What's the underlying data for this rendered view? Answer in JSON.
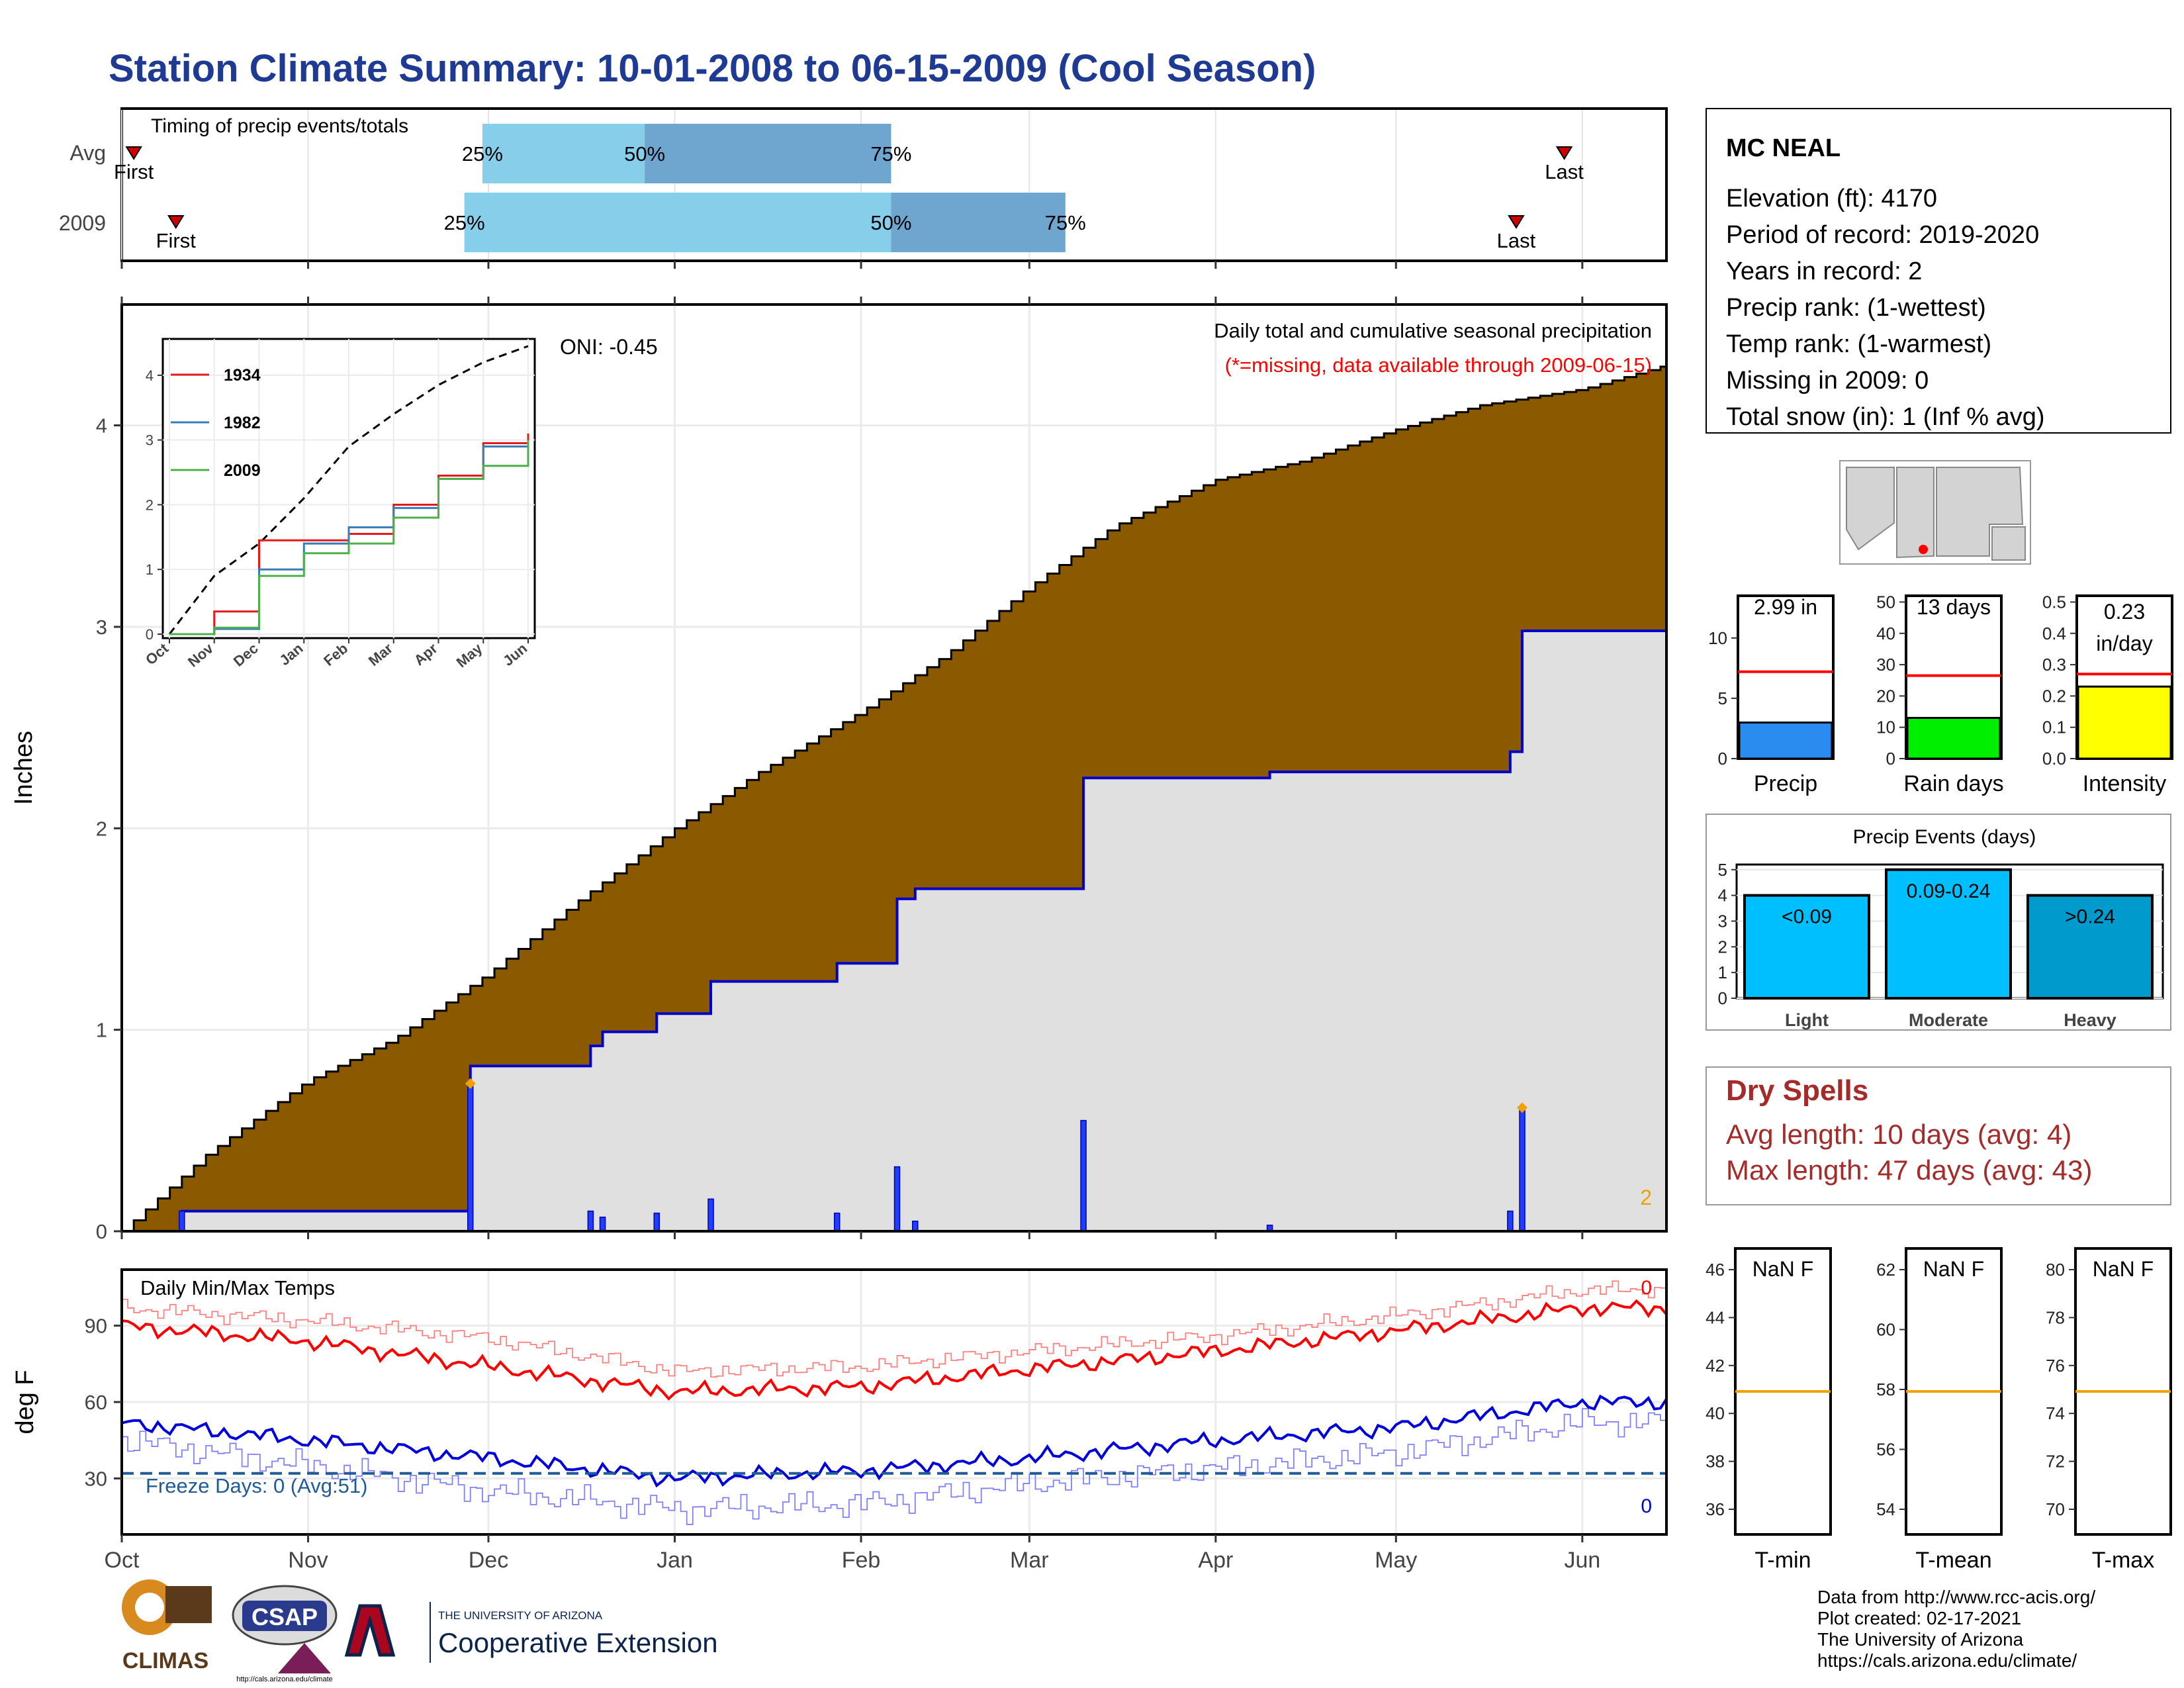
{
  "title": "Station Climate Summary: 10-01-2008 to 06-15-2009 (Cool Season)",
  "colors": {
    "title": "#1f3a93",
    "cumulative_fill": "#8b5a00",
    "avg_fill": "#e0e0e0",
    "avg_line": "#0000cc",
    "daily_bar": "#1f3fff",
    "max_temp": "#ff0000",
    "min_temp": "#0000dd",
    "freeze_line": "#1f5a99",
    "dry_spells": "#a52a2a",
    "missing_note": "#ff0000",
    "q_light": "#87ceeb",
    "q_dark": "#6ea6d0"
  },
  "timing": {
    "title": "Timing of precip events/totals",
    "rows": [
      {
        "label": "Avg",
        "first_label": "First",
        "last_label": "Last",
        "first_day": 2,
        "last_day": 240,
        "q25": 60,
        "q50": 87,
        "q75": 128,
        "p25": "25%",
        "p50": "50%",
        "p75": "75%"
      },
      {
        "label": "2009",
        "first_label": "First",
        "last_label": "Last",
        "first_day": 9,
        "last_day": 232,
        "q25": 57,
        "q50": 128,
        "q75": 157,
        "p25": "25%",
        "p50": "50%",
        "p75": "75%"
      }
    ]
  },
  "precip": {
    "ylabel": "Inches",
    "oni": "ONI: -0.45",
    "note1": "Daily total and cumulative seasonal precipitation",
    "note2": "(*=missing, data available through 2009-06-15)",
    "count_label": "2",
    "x_ticks": [
      "Oct",
      "Nov",
      "Dec",
      "Jan",
      "Feb",
      "Mar",
      "Apr",
      "May",
      "Jun"
    ],
    "y_ticks": [
      "0",
      "1",
      "2",
      "3",
      "4"
    ],
    "ylim": [
      0,
      4.6
    ]
  },
  "inset": {
    "x_ticks": [
      "Oct",
      "Nov",
      "Dec",
      "Jan",
      "Feb",
      "Mar",
      "Apr",
      "May",
      "Jun"
    ],
    "y_ticks": [
      "0",
      "1",
      "2",
      "3",
      "4"
    ],
    "legend": [
      {
        "name": "1934",
        "color": "#e41a1c"
      },
      {
        "name": "1982",
        "color": "#377eb8"
      },
      {
        "name": "2009",
        "color": "#4daf4a"
      }
    ]
  },
  "temps": {
    "title": "Daily Min/Max Temps",
    "ylabel": "deg F",
    "freeze": "Freeze Days: 0 (Avg:51)",
    "max_count": "0",
    "min_count": "0",
    "y_ticks": [
      "30",
      "60",
      "90"
    ],
    "x_ticks": [
      "Oct",
      "Nov",
      "Dec",
      "Jan",
      "Feb",
      "Mar",
      "Apr",
      "May",
      "Jun"
    ]
  },
  "station": {
    "name": "MC NEAL",
    "lines": [
      "Elevation (ft): 4170",
      "Period of record: 2019-2020",
      "Years in record: 2",
      "Precip rank:  (1-wettest)",
      "Temp rank:  (1-warmest)",
      "Missing in 2009: 0",
      "Total snow (in): 1 (Inf % avg)"
    ]
  },
  "mini_bars": [
    {
      "label": "Precip",
      "value_label": "2.99 in",
      "value": 2.99,
      "avg": 7.2,
      "ymax": 13.5,
      "ticks": [
        "0",
        "5",
        "10"
      ],
      "color": "#2b8cf0"
    },
    {
      "label": "Rain days",
      "value_label": "13 days",
      "value": 13,
      "avg": 26.5,
      "ymax": 52,
      "ticks": [
        "0",
        "10",
        "20",
        "30",
        "40",
        "50"
      ],
      "color": "#00ee00"
    },
    {
      "label": "Intensity",
      "value_label": "0.23 in/day",
      "value": 0.23,
      "avg": 0.27,
      "ymax": 0.52,
      "ticks": [
        "0.0",
        "0.1",
        "0.2",
        "0.3",
        "0.4",
        "0.5"
      ],
      "color": "#ffff00"
    }
  ],
  "events": {
    "title": "Precip Events (days)",
    "bars": [
      {
        "label": "Light",
        "range": "<0.09",
        "value": 4,
        "color": "#00bfff"
      },
      {
        "label": "Moderate",
        "range": "0.09-0.24",
        "value": 5,
        "color": "#00bfff"
      },
      {
        "label": "Heavy",
        "range": ">0.24",
        "value": 4,
        "color": "#009acd"
      }
    ],
    "y_ticks": [
      "0",
      "1",
      "2",
      "3",
      "4",
      "5"
    ]
  },
  "dry_spells": {
    "title": "Dry Spells",
    "avg": "Avg length: 10 days (avg: 4)",
    "max": "Max length: 47 days (avg: 43)"
  },
  "temp_boxes": [
    {
      "label": "T-min",
      "value": "NaN F",
      "ticks": [
        "36",
        "38",
        "40",
        "42",
        "44",
        "46"
      ],
      "avg_frac": 0.5
    },
    {
      "label": "T-mean",
      "value": "NaN F",
      "ticks": [
        "54",
        "56",
        "58",
        "60",
        "62"
      ],
      "avg_frac": 0.5
    },
    {
      "label": "T-max",
      "value": "NaN F",
      "ticks": [
        "70",
        "72",
        "74",
        "76",
        "78",
        "80"
      ],
      "avg_frac": 0.5
    }
  ],
  "footer": [
    "Data from http://www.rcc-acis.org/",
    "Plot created: 02-17-2021",
    "The University of Arizona",
    "https://cals.arizona.edu/climate/"
  ],
  "logos": {
    "climas": "CLIMAS",
    "csap": "CSAP",
    "csap_url": "http://cals.arizona.edu/climate",
    "ua_line1": "THE UNIVERSITY OF ARIZONA",
    "ua_line2": "Cooperative Extension"
  },
  "chart_data": [
    {
      "type": "area",
      "title": "Daily total and cumulative seasonal precipitation",
      "ylabel": "Inches",
      "ylim": [
        0,
        4.6
      ],
      "x_range": [
        "2008-10-01",
        "2009-06-15"
      ],
      "series": [
        {
          "name": "",
          "kind": "average cumulative",
          "x": [
            "2008-10-01",
            "2008-10-15",
            "2008-11-01",
            "2008-11-15",
            "2008-12-01",
            "2008-12-15",
            "2009-01-01",
            "2009-01-15",
            "2009-02-01",
            "2009-02-15",
            "2009-03-01",
            "2009-03-15",
            "2009-04-01",
            "2009-04-15",
            "2009-05-01",
            "2009-05-15",
            "2009-06-01",
            "2009-06-15"
          ],
          "values": [
            0.0,
            0.38,
            0.75,
            0.95,
            1.28,
            1.62,
            2.0,
            2.28,
            2.58,
            2.86,
            3.2,
            3.5,
            3.73,
            3.82,
            3.98,
            4.1,
            4.18,
            4.3
          ]
        },
        {
          "name": "",
          "kind": "2009 cumulative",
          "x": [
            "2008-10-01",
            "2008-10-11",
            "2008-11-28",
            "2008-12-18",
            "2008-12-20",
            "2008-12-29",
            "2009-01-07",
            "2009-01-28",
            "2009-02-07",
            "2009-02-10",
            "2009-03-10",
            "2009-04-10",
            "2009-05-20",
            "2009-05-22",
            "2009-06-15"
          ],
          "values": [
            0.0,
            0.1,
            0.82,
            0.92,
            0.99,
            1.08,
            1.24,
            1.33,
            1.65,
            1.7,
            2.25,
            2.28,
            2.38,
            2.98,
            2.98
          ]
        },
        {
          "name": "",
          "kind": "daily precip bars",
          "x": [
            "2008-10-11",
            "2008-11-28",
            "2008-12-18",
            "2008-12-20",
            "2008-12-29",
            "2009-01-07",
            "2009-01-28",
            "2009-02-07",
            "2009-02-10",
            "2009-03-10",
            "2009-04-10",
            "2009-05-20",
            "2009-05-22"
          ],
          "values": [
            0.1,
            0.72,
            0.1,
            0.07,
            0.09,
            0.16,
            0.09,
            0.32,
            0.05,
            0.55,
            0.03,
            0.1,
            0.6
          ]
        }
      ]
    },
    {
      "type": "line",
      "title": "",
      "x": [
        "Oct",
        "Nov",
        "Dec",
        "Jan",
        "Feb",
        "Mar",
        "Apr",
        "May",
        "Jun"
      ],
      "ylim": [
        0,
        4.5
      ],
      "series": [
        {
          "name": "",
          "values": [
            0.0,
            0.9,
            1.4,
            2.1,
            2.9,
            3.4,
            3.85,
            4.2,
            4.45
          ]
        },
        {
          "name": "1934",
          "values": [
            0.0,
            0.35,
            1.45,
            1.45,
            1.55,
            2.0,
            2.45,
            2.95,
            3.1
          ]
        },
        {
          "name": "1982",
          "values": [
            0.0,
            0.08,
            1.0,
            1.4,
            1.65,
            1.95,
            2.4,
            2.9,
            3.0
          ]
        },
        {
          "name": "2009",
          "values": [
            0.0,
            0.1,
            0.9,
            1.25,
            1.4,
            1.8,
            2.4,
            2.6,
            3.0
          ]
        }
      ]
    },
    {
      "type": "line",
      "title": "Daily Min/Max Temps",
      "ylabel": "deg F",
      "x": [
        "Oct",
        "Nov",
        "Dec",
        "Jan",
        "Feb",
        "Mar",
        "Apr",
        "May",
        "Jun"
      ],
      "series": [
        {
          "name": "",
          "kind": "max temp",
          "values": [
            90,
            84,
            74,
            64,
            66,
            73,
            80,
            88,
            97
          ]
        },
        {
          "name": "",
          "kind": "min temp",
          "values": [
            52,
            45,
            38,
            30,
            33,
            38,
            45,
            50,
            60
          ]
        },
        {
          "name": "",
          "kind": "record max",
          "values": [
            97,
            92,
            85,
            72,
            74,
            80,
            86,
            94,
            104
          ]
        },
        {
          "name": "",
          "kind": "record min",
          "values": [
            45,
            35,
            25,
            18,
            20,
            28,
            34,
            40,
            52
          ]
        },
        {
          "name": "",
          "kind": "freeze line",
          "values": [
            32,
            32,
            32,
            32,
            32,
            32,
            32,
            32,
            32
          ]
        }
      ]
    },
    {
      "type": "bar",
      "title": "",
      "categories": [
        "Precip",
        "Rain days",
        "Intensity"
      ],
      "values": [
        2.99,
        13,
        0.23
      ]
    },
    {
      "type": "bar",
      "title": "Precip Events (days)",
      "categories": [
        "Light",
        "Moderate",
        "Heavy"
      ],
      "values": [
        4,
        5,
        4
      ]
    }
  ]
}
